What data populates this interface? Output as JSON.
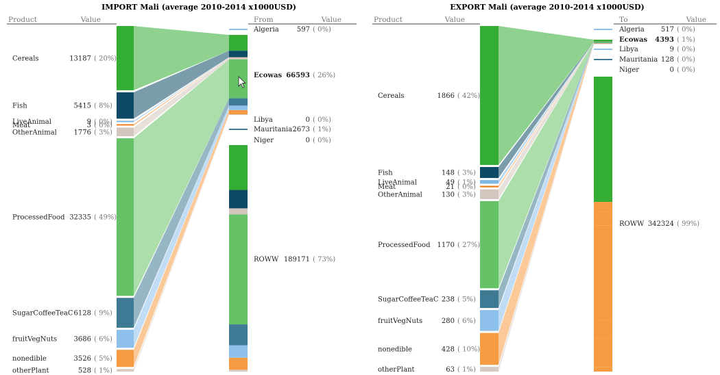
{
  "palette": {
    "cereals": "#33ad33",
    "fish": "#0d4a66",
    "liveanimal": "#7fb7e0",
    "meat": "#f07f1a",
    "otheranimal": "#d3c6be",
    "processedfood": "#66c266",
    "sugar": "#3f7a94",
    "fruit": "#8ec0ec",
    "nonedible": "#f79b42",
    "otherplant": "#d6cac2",
    "pointer": "#ffffff"
  },
  "import": {
    "title": "IMPORT Mali (average 2010-2014 x1000USD)",
    "col_product": "Product",
    "col_value": "Value",
    "col_from": "From",
    "col_value2": "Value"
  },
  "export": {
    "title": "EXPORT Mali (average 2010-2014 x1000USD)",
    "col_product": "Product",
    "col_value": "Value",
    "col_to": "To",
    "col_value2": "Value"
  },
  "chart_data": [
    {
      "type": "sankey",
      "title": "IMPORT Mali (average 2010-2014 x1000USD)",
      "products": [
        {
          "name": "Cereals",
          "value": 13187,
          "pct": "( 20%)",
          "key": "cereals"
        },
        {
          "name": "Fish",
          "value": 5415,
          "pct": "(  8%)",
          "key": "fish"
        },
        {
          "name": "LiveAnimal",
          "value": 9,
          "pct": "(  0%)",
          "key": "liveanimal"
        },
        {
          "name": "Meat",
          "value": 3,
          "pct": "(  0%)",
          "key": "meat"
        },
        {
          "name": "OtherAnimal",
          "value": 1776,
          "pct": "(  3%)",
          "key": "otheranimal"
        },
        {
          "name": "ProcessedFood",
          "value": 32335,
          "pct": "( 49%)",
          "key": "processedfood"
        },
        {
          "name": "SugarCoffeeTeaC",
          "value": 6128,
          "pct": "(  9%)",
          "key": "sugar"
        },
        {
          "name": "fruitVegNuts",
          "value": 3686,
          "pct": "(  6%)",
          "key": "fruit"
        },
        {
          "name": "nonedible",
          "value": 3526,
          "pct": "(  5%)",
          "key": "nonedible"
        },
        {
          "name": "otherPlant",
          "value": 528,
          "pct": "(  1%)",
          "key": "otherplant"
        }
      ],
      "partners": [
        {
          "name": "Algeria",
          "value": 597,
          "pct": "(  0%)"
        },
        {
          "name": "Ecowas",
          "value": 66593,
          "pct": "( 26%)",
          "bold": true
        },
        {
          "name": "Libya",
          "value": 0,
          "pct": "(  0%)"
        },
        {
          "name": "Mauritania",
          "value": 2673,
          "pct": "(  1%)"
        },
        {
          "name": "Niger",
          "value": 0,
          "pct": "(  0%)"
        },
        {
          "name": "ROWW",
          "value": 189171,
          "pct": "( 73%)"
        }
      ],
      "highlighted_partner": "Ecowas"
    },
    {
      "type": "sankey",
      "title": "EXPORT Mali (average 2010-2014 x1000USD)",
      "products": [
        {
          "name": "Cereals",
          "value": 1866,
          "pct": "( 42%)",
          "key": "cereals"
        },
        {
          "name": "Fish",
          "value": 148,
          "pct": "(  3%)",
          "key": "fish"
        },
        {
          "name": "LiveAnimal",
          "value": 49,
          "pct": "(  1%)",
          "key": "liveanimal"
        },
        {
          "name": "Meat",
          "value": 21,
          "pct": "(  0%)",
          "key": "meat"
        },
        {
          "name": "OtherAnimal",
          "value": 130,
          "pct": "(  3%)",
          "key": "otheranimal"
        },
        {
          "name": "ProcessedFood",
          "value": 1170,
          "pct": "( 27%)",
          "key": "processedfood"
        },
        {
          "name": "SugarCoffeeTeaC",
          "value": 238,
          "pct": "(  5%)",
          "key": "sugar"
        },
        {
          "name": "fruitVegNuts",
          "value": 280,
          "pct": "(  6%)",
          "key": "fruit"
        },
        {
          "name": "nonedible",
          "value": 428,
          "pct": "( 10%)",
          "key": "nonedible"
        },
        {
          "name": "otherPlant",
          "value": 63,
          "pct": "(  1%)",
          "key": "otherplant"
        }
      ],
      "partners": [
        {
          "name": "Algeria",
          "value": 517,
          "pct": "(  0%)"
        },
        {
          "name": "Ecowas",
          "value": 4393,
          "pct": "(  1%)",
          "bold": true
        },
        {
          "name": "Libya",
          "value": 9,
          "pct": "(  0%)"
        },
        {
          "name": "Mauritania",
          "value": 128,
          "pct": "(  0%)"
        },
        {
          "name": "Niger",
          "value": 0,
          "pct": "(  0%)"
        },
        {
          "name": "ROWW",
          "value": 342324,
          "pct": "( 99%)"
        }
      ],
      "highlighted_partner": "Ecowas"
    }
  ]
}
